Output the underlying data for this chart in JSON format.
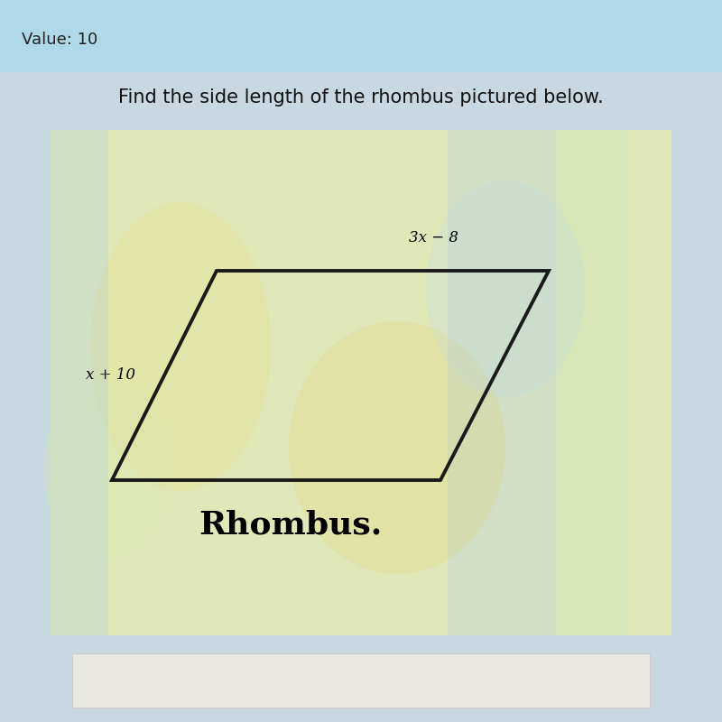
{
  "title": "Find the side length of the rhombus pictured below.",
  "header": "Value: 10",
  "label_top": "3x − 8",
  "label_left": "x + 10",
  "rhombus_label": "Rhombus.",
  "header_bg": "#a8d8e8",
  "main_bg": "#d8e8c0",
  "box_bg": "#e8e8c0",
  "rhombus_color": "#1a1a1a",
  "line_width": 2.8,
  "title_fontsize": 15,
  "header_fontsize": 13,
  "label_fontsize": 12,
  "rhombus_label_fontsize": 26,
  "vx": [
    0.155,
    0.3,
    0.76,
    0.61
  ],
  "vy": [
    0.335,
    0.625,
    0.625,
    0.335
  ]
}
